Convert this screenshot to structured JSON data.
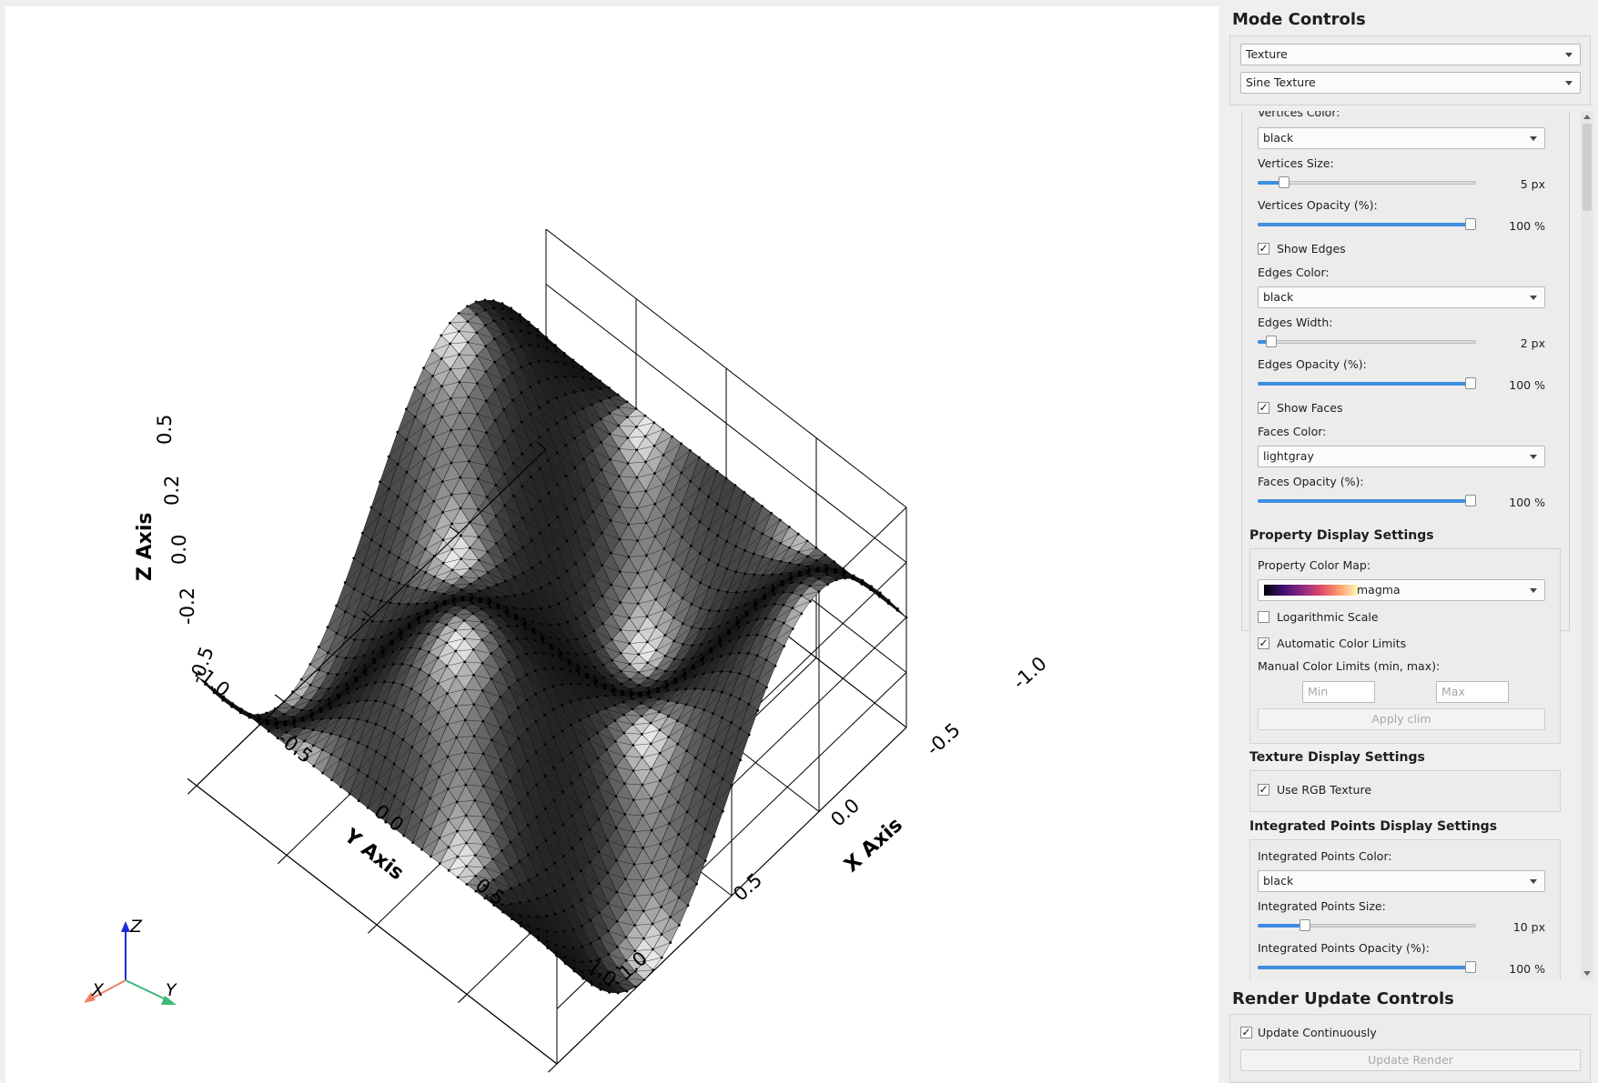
{
  "viewport": {
    "axes": {
      "z_label": "Z Axis",
      "y_label": "Y Axis",
      "x_label": "X Axis",
      "z_ticks": [
        "0.5",
        "0.2",
        "0.0",
        "-0.2",
        "-0.5"
      ],
      "y_ticks": [
        "-1.0",
        "-0.5",
        "0.0",
        "0.5",
        "1.0"
      ],
      "x_ticks": [
        "1.0",
        "0.5",
        "0.0",
        "-0.5",
        "-1.0"
      ]
    },
    "triad": {
      "x": "X",
      "y": "Y",
      "z": "Z"
    }
  },
  "mode_controls": {
    "title": "Mode Controls",
    "mode_select": "Texture",
    "texture_select": "Sine Texture"
  },
  "mesh": {
    "vertices_color_label": "Vertices Color:",
    "vertices_color": "black",
    "vertices_size_label": "Vertices Size:",
    "vertices_size_value": "5 px",
    "vertices_size_fraction": 0.1,
    "vertices_opacity_label": "Vertices Opacity (%):",
    "vertices_opacity_value": "100 %",
    "vertices_opacity_fraction": 1.0,
    "show_edges_label": "Show Edges",
    "show_edges": true,
    "edges_color_label": "Edges Color:",
    "edges_color": "black",
    "edges_width_label": "Edges Width:",
    "edges_width_value": "2 px",
    "edges_width_fraction": 0.04,
    "edges_opacity_label": "Edges Opacity (%):",
    "edges_opacity_value": "100 %",
    "edges_opacity_fraction": 1.0,
    "show_faces_label": "Show Faces",
    "show_faces": true,
    "faces_color_label": "Faces Color:",
    "faces_color": "lightgray",
    "faces_opacity_label": "Faces Opacity (%):",
    "faces_opacity_value": "100 %",
    "faces_opacity_fraction": 1.0
  },
  "property_display": {
    "title": "Property Display Settings",
    "color_map_label": "Property Color Map:",
    "color_map": "magma",
    "log_scale_label": "Logarithmic Scale",
    "log_scale": false,
    "auto_limits_label": "Automatic Color Limits",
    "auto_limits": true,
    "manual_limits_label": "Manual Color Limits (min, max):",
    "min_placeholder": "Min",
    "max_placeholder": "Max",
    "apply_button": "Apply clim"
  },
  "texture_display": {
    "title": "Texture Display Settings",
    "use_rgb_label": "Use RGB Texture",
    "use_rgb": true
  },
  "integrated_points": {
    "title": "Integrated Points Display Settings",
    "color_label": "Integrated Points Color:",
    "color": "black",
    "size_label": "Integrated Points Size:",
    "size_value": "10 px",
    "size_fraction": 0.2,
    "opacity_label": "Integrated Points Opacity (%):",
    "opacity_value": "100 %",
    "opacity_fraction": 1.0
  },
  "render_update": {
    "title": "Render Update Controls",
    "continuous_label": "Update Continuously",
    "continuous": true,
    "update_button": "Update Render"
  },
  "colors": {
    "slider_fill": "#3d8ee0",
    "triad_x": "#f08060",
    "triad_y": "#3cb878",
    "triad_z": "#1a2ad8"
  }
}
